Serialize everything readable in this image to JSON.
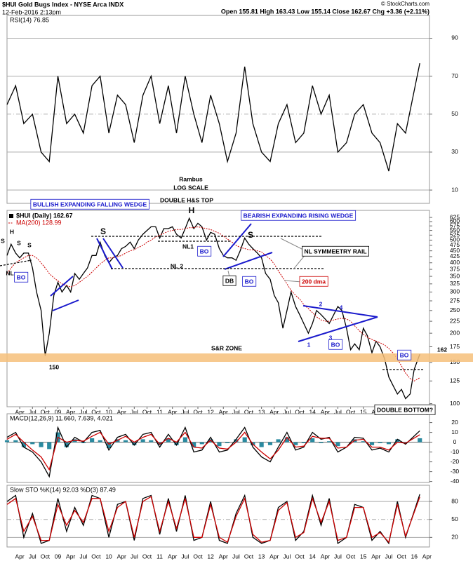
{
  "header": {
    "symbol": "$HUI Gold Bugs Index - NYSE Arca INDX",
    "date": "12-Feb-2016 2:13pm",
    "quote": "Open 155.81 High 163.43 Low 155.14 Close 162.67 Chg +3.36 (+2.11%)",
    "credit": "© StockCharts.com"
  },
  "chart_data": [
    {
      "type": "line",
      "title": "RSI(14) 76.85",
      "xlim": [
        2008,
        2016.3
      ],
      "ylim": [
        3,
        102
      ],
      "yticks": [
        10,
        30,
        50,
        70,
        90
      ],
      "grid": true,
      "x": [
        2008,
        2008.17,
        2008.33,
        2008.5,
        2008.67,
        2008.83,
        2009,
        2009.17,
        2009.33,
        2009.5,
        2009.67,
        2009.83,
        2010,
        2010.17,
        2010.33,
        2010.5,
        2010.67,
        2010.83,
        2011,
        2011.17,
        2011.33,
        2011.5,
        2011.67,
        2011.83,
        2012,
        2012.17,
        2012.33,
        2012.5,
        2012.67,
        2012.83,
        2013,
        2013.17,
        2013.33,
        2013.5,
        2013.67,
        2013.83,
        2014,
        2014.17,
        2014.33,
        2014.5,
        2014.67,
        2014.83,
        2015,
        2015.17,
        2015.33,
        2015.5,
        2015.67,
        2015.83,
        2016.11
      ],
      "series": [
        {
          "color": "#000000",
          "values": [
            55,
            65,
            45,
            50,
            30,
            25,
            70,
            45,
            50,
            40,
            65,
            70,
            40,
            60,
            55,
            35,
            60,
            70,
            45,
            65,
            40,
            70,
            50,
            35,
            60,
            45,
            25,
            40,
            75,
            45,
            30,
            25,
            45,
            55,
            35,
            40,
            65,
            50,
            60,
            30,
            35,
            50,
            55,
            40,
            35,
            20,
            45,
            40,
            76.85
          ]
        }
      ]
    },
    {
      "type": "line",
      "log": true,
      "xlim": [
        2008,
        2016.3
      ],
      "ylim": [
        97,
        670
      ],
      "yticks": [
        100,
        125,
        150,
        175,
        200,
        225,
        250,
        275,
        300,
        325,
        350,
        375,
        400,
        425,
        450,
        475,
        500,
        525,
        550,
        575,
        600,
        625
      ],
      "xticks": [
        {
          "value": 2008.25,
          "label": "Apr"
        },
        {
          "value": 2008.5,
          "label": "Jul"
        },
        {
          "value": 2008.75,
          "label": "Oct"
        },
        {
          "value": 2009,
          "label": "09"
        },
        {
          "value": 2009.25,
          "label": "Apr"
        },
        {
          "value": 2009.5,
          "label": "Jul"
        },
        {
          "value": 2009.75,
          "label": "Oct"
        },
        {
          "value": 2010,
          "label": "10"
        },
        {
          "value": 2010.25,
          "label": "Apr"
        },
        {
          "value": 2010.5,
          "label": "Jul"
        },
        {
          "value": 2010.75,
          "label": "Oct"
        },
        {
          "value": 2011,
          "label": "11"
        },
        {
          "value": 2011.25,
          "label": "Apr"
        },
        {
          "value": 2011.5,
          "label": "Jul"
        },
        {
          "value": 2011.75,
          "label": "Oct"
        },
        {
          "value": 2012,
          "label": "12"
        },
        {
          "value": 2012.25,
          "label": "Apr"
        },
        {
          "value": 2012.5,
          "label": "Jul"
        },
        {
          "value": 2012.75,
          "label": "Oct"
        },
        {
          "value": 2013,
          "label": "13"
        },
        {
          "value": 2013.25,
          "label": "Apr"
        },
        {
          "value": 2013.5,
          "label": "Jul"
        },
        {
          "value": 2013.75,
          "label": "Oct"
        },
        {
          "value": 2014,
          "label": "14"
        },
        {
          "value": 2014.25,
          "label": "Apr"
        },
        {
          "value": 2014.5,
          "label": "Jul"
        },
        {
          "value": 2014.75,
          "label": "Oct"
        },
        {
          "value": 2015,
          "label": "15"
        },
        {
          "value": 2015.25,
          "label": "Apr"
        },
        {
          "value": 2015.5,
          "label": "Jul"
        },
        {
          "value": 2015.75,
          "label": "Oct"
        },
        {
          "value": 2016,
          "label": "16"
        },
        {
          "value": 2016.25,
          "label": "Apr"
        }
      ],
      "x": [
        2008,
        2008.08,
        2008.17,
        2008.25,
        2008.33,
        2008.42,
        2008.5,
        2008.58,
        2008.67,
        2008.75,
        2008.83,
        2008.92,
        2009,
        2009.08,
        2009.17,
        2009.25,
        2009.33,
        2009.42,
        2009.5,
        2009.58,
        2009.67,
        2009.75,
        2009.83,
        2009.92,
        2010,
        2010.08,
        2010.17,
        2010.25,
        2010.33,
        2010.42,
        2010.5,
        2010.58,
        2010.67,
        2010.75,
        2010.83,
        2010.92,
        2011,
        2011.08,
        2011.17,
        2011.25,
        2011.33,
        2011.42,
        2011.5,
        2011.58,
        2011.67,
        2011.75,
        2011.83,
        2011.92,
        2012,
        2012.08,
        2012.17,
        2012.25,
        2012.33,
        2012.42,
        2012.5,
        2012.58,
        2012.67,
        2012.75,
        2012.83,
        2012.92,
        2013,
        2013.08,
        2013.17,
        2013.25,
        2013.33,
        2013.42,
        2013.5,
        2013.58,
        2013.67,
        2013.75,
        2013.83,
        2013.92,
        2014,
        2014.08,
        2014.17,
        2014.25,
        2014.33,
        2014.42,
        2014.5,
        2014.58,
        2014.67,
        2014.75,
        2014.83,
        2014.92,
        2015,
        2015.08,
        2015.17,
        2015.25,
        2015.33,
        2015.42,
        2015.5,
        2015.58,
        2015.67,
        2015.75,
        2015.83,
        2015.92,
        2016,
        2016.11
      ],
      "series": [
        {
          "name": "$HUI (Daily) 162.67",
          "color": "#000000",
          "values": [
            430,
            480,
            440,
            420,
            440,
            440,
            380,
            300,
            250,
            160,
            200,
            290,
            330,
            300,
            320,
            300,
            360,
            340,
            360,
            380,
            430,
            430,
            490,
            430,
            400,
            420,
            430,
            460,
            470,
            490,
            460,
            500,
            530,
            550,
            570,
            570,
            510,
            560,
            560,
            570,
            530,
            510,
            560,
            620,
            560,
            590,
            570,
            500,
            540,
            530,
            460,
            430,
            420,
            420,
            410,
            450,
            510,
            480,
            460,
            440,
            420,
            360,
            340,
            290,
            270,
            210,
            250,
            300,
            260,
            240,
            220,
            200,
            220,
            250,
            240,
            230,
            220,
            240,
            260,
            250,
            210,
            170,
            180,
            170,
            210,
            195,
            165,
            185,
            175,
            155,
            130,
            120,
            110,
            115,
            105,
            110,
            140,
            162.67
          ]
        },
        {
          "name": "MA(200) 128.99",
          "color": "#cc0000",
          "dash": true,
          "values": [
            360,
            380,
            400,
            410,
            420,
            430,
            430,
            420,
            400,
            380,
            360,
            345,
            335,
            325,
            320,
            315,
            320,
            330,
            340,
            350,
            365,
            380,
            395,
            410,
            420,
            420,
            425,
            430,
            440,
            450,
            455,
            465,
            475,
            490,
            500,
            515,
            525,
            535,
            545,
            550,
            555,
            555,
            560,
            565,
            565,
            570,
            565,
            560,
            555,
            545,
            535,
            520,
            505,
            490,
            475,
            465,
            460,
            455,
            455,
            450,
            445,
            430,
            415,
            395,
            370,
            345,
            325,
            305,
            290,
            280,
            265,
            255,
            245,
            235,
            228,
            225,
            225,
            228,
            230,
            232,
            230,
            225,
            215,
            205,
            198,
            192,
            188,
            185,
            182,
            178,
            172,
            165,
            155,
            145,
            135,
            128,
            125,
            128.99
          ]
        }
      ]
    },
    {
      "type": "line",
      "title": "MACD(12,26,9) 11.660, 7.639, 4.021",
      "xlim": [
        2008,
        2016.3
      ],
      "ylim": [
        -41,
        29
      ],
      "yticks": [
        -40,
        -30,
        -20,
        -10,
        0,
        10,
        20
      ],
      "grid": false,
      "x": [
        2008,
        2008.17,
        2008.33,
        2008.5,
        2008.67,
        2008.83,
        2009,
        2009.17,
        2009.33,
        2009.5,
        2009.67,
        2009.83,
        2010,
        2010.17,
        2010.33,
        2010.5,
        2010.67,
        2010.83,
        2011,
        2011.17,
        2011.33,
        2011.5,
        2011.67,
        2011.83,
        2012,
        2012.17,
        2012.33,
        2012.5,
        2012.67,
        2012.83,
        2013,
        2013.17,
        2013.33,
        2013.5,
        2013.67,
        2013.83,
        2014,
        2014.17,
        2014.33,
        2014.5,
        2014.67,
        2014.83,
        2015,
        2015.17,
        2015.33,
        2015.5,
        2015.67,
        2015.83,
        2016.11
      ],
      "series": [
        {
          "color": "#2a8aa0",
          "style": "histogram",
          "values": [
            2,
            2,
            -5,
            -2,
            -5,
            -7,
            10,
            -5,
            3,
            -1,
            4,
            2,
            -6,
            3,
            2,
            -3,
            3,
            2,
            -3,
            4,
            -3,
            5,
            -5,
            -2,
            3,
            -4,
            -1,
            3,
            5,
            -3,
            -5,
            -3,
            3,
            5,
            -3,
            -1,
            4,
            -1,
            1,
            -4,
            0,
            3,
            1,
            -3,
            -1,
            -2,
            3,
            -1,
            4.021
          ]
        },
        {
          "color": "#000000",
          "values": [
            5,
            10,
            -5,
            -10,
            -20,
            -35,
            15,
            -5,
            5,
            0,
            10,
            12,
            -8,
            5,
            8,
            -3,
            8,
            10,
            -5,
            8,
            -3,
            15,
            -10,
            -8,
            5,
            -10,
            -8,
            3,
            15,
            -5,
            -15,
            -20,
            -5,
            10,
            -8,
            -5,
            10,
            3,
            5,
            -10,
            -5,
            5,
            4,
            -8,
            -6,
            -10,
            3,
            -2,
            11.66
          ]
        },
        {
          "color": "#cc0000",
          "values": [
            3,
            8,
            0,
            -8,
            -15,
            -28,
            5,
            0,
            2,
            1,
            6,
            10,
            -2,
            2,
            6,
            0,
            5,
            8,
            -2,
            4,
            0,
            10,
            -5,
            -6,
            2,
            -6,
            -7,
            0,
            10,
            -2,
            -10,
            -17,
            -8,
            5,
            -5,
            -4,
            6,
            4,
            4,
            -6,
            -5,
            2,
            3,
            -5,
            -5,
            -8,
            0,
            -1,
            7.639
          ]
        }
      ]
    },
    {
      "type": "line",
      "title": "Slow STO %K(14) 92.03 %D(3) 87.49",
      "xlim": [
        2008,
        2016.3
      ],
      "ylim": [
        4,
        107
      ],
      "yticks": [
        20,
        50,
        80
      ],
      "grid": true,
      "x": [
        2008,
        2008.17,
        2008.33,
        2008.5,
        2008.67,
        2008.83,
        2009,
        2009.17,
        2009.33,
        2009.5,
        2009.67,
        2009.83,
        2010,
        2010.17,
        2010.33,
        2010.5,
        2010.67,
        2010.83,
        2011,
        2011.17,
        2011.33,
        2011.5,
        2011.67,
        2011.83,
        2012,
        2012.17,
        2012.33,
        2012.5,
        2012.67,
        2012.83,
        2013,
        2013.17,
        2013.33,
        2013.5,
        2013.67,
        2013.83,
        2014,
        2014.17,
        2014.33,
        2014.5,
        2014.67,
        2014.83,
        2015,
        2015.17,
        2015.33,
        2015.5,
        2015.67,
        2015.83,
        2016.11
      ],
      "series": [
        {
          "color": "#000000",
          "values": [
            80,
            90,
            20,
            60,
            10,
            15,
            85,
            30,
            70,
            40,
            90,
            85,
            20,
            75,
            80,
            15,
            85,
            90,
            25,
            85,
            30,
            90,
            15,
            20,
            80,
            15,
            10,
            60,
            90,
            20,
            10,
            15,
            70,
            80,
            15,
            30,
            90,
            40,
            85,
            10,
            20,
            75,
            70,
            15,
            30,
            10,
            80,
            20,
            92.03
          ]
        },
        {
          "color": "#cc0000",
          "values": [
            75,
            85,
            30,
            55,
            15,
            15,
            75,
            40,
            65,
            45,
            85,
            85,
            30,
            70,
            80,
            20,
            80,
            88,
            30,
            80,
            35,
            85,
            20,
            20,
            75,
            20,
            12,
            55,
            85,
            25,
            12,
            15,
            65,
            78,
            20,
            28,
            85,
            45,
            80,
            15,
            20,
            70,
            70,
            20,
            28,
            12,
            75,
            22,
            87.49
          ]
        }
      ]
    }
  ],
  "annotations": [
    "Rambus",
    "LOG SCALE",
    "DOUBLE H&S TOP",
    "BULLISH EXPANDING FALLING WEDGE",
    "BEARISH EXPANDING RISING WEDGE",
    "NL SYMMEETRY RAIL",
    "200 dma",
    "S&R ZONE",
    "150",
    "162",
    "DOUBLE BOTTOM?",
    "NL 2",
    "NL1",
    "NL",
    "BO",
    "BO",
    "DB",
    "BO",
    "BO",
    "BO",
    "H",
    "H",
    "S",
    "S",
    "S",
    "S",
    "S",
    "1",
    "2",
    "3",
    "4"
  ]
}
